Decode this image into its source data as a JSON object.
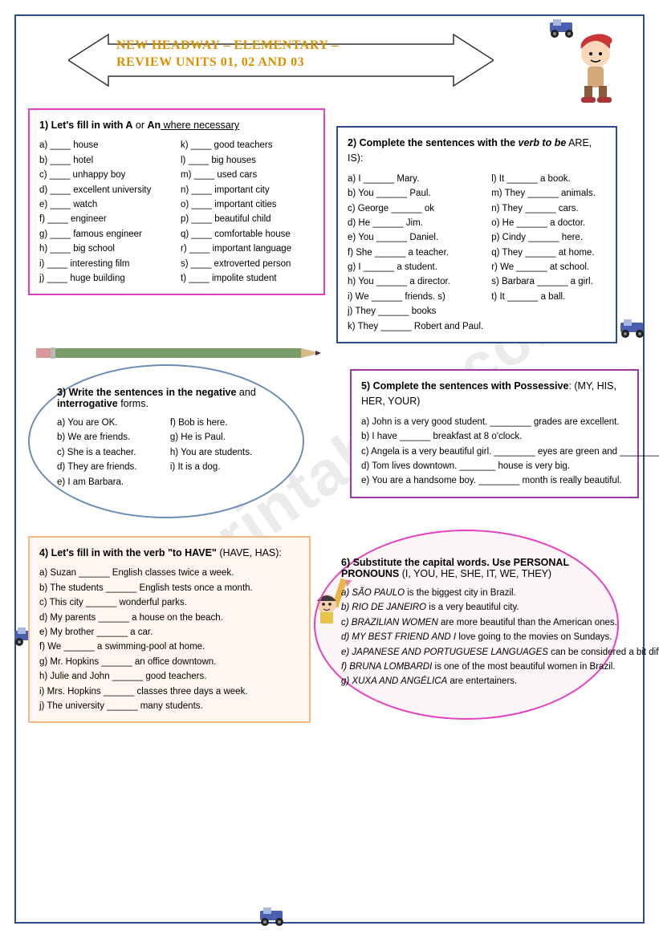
{
  "title": "NEW HEADWAY – ELEMENTARY –\nREVIEW UNITS 01, 02 AND 03",
  "watermark": "ESLprintables.com",
  "q1": {
    "title_pre": "1)  Let's fill in with ",
    "title_bold": "A",
    "title_mid": " or ",
    "title_bold2": "An",
    "title_suf": " where necessary",
    "left": [
      "a) ____ house",
      "b) ____ hotel",
      "c) ____ unhappy boy",
      "d) ____ excellent university",
      "e) ____ watch",
      "f) ____ engineer",
      "g) ____ famous engineer",
      "h) ____ big school",
      "i) ____ interesting film",
      "j) ____ huge building"
    ],
    "right": [
      "k) ____ good teachers",
      "l) ____ big houses",
      "m) ____ used cars",
      "n) ____ important city",
      "o) ____ important cities",
      "p) ____ beautiful child",
      "q) ____ comfortable house",
      "r) ____ important language",
      "s) ____ extroverted person",
      "t) ____ impolite student"
    ]
  },
  "q2": {
    "title_pre": "2) Complete the sentences with the ",
    "title_bold": "verb to be",
    "title_suf": " ARE, IS):",
    "left": [
      "a) I ______ Mary.",
      "b) You ______ Paul.",
      "c) George ______ ok",
      "d) He ______ Jim.",
      "e) You ______ Daniel.",
      "f) She ______ a teacher.",
      "g) I ______ a student.",
      "h) You ______ a director.",
      "i) We ______ friends. s)",
      "j) They ______ books",
      "k) They ______ Robert and Paul."
    ],
    "right": [
      "l) It ______ a book.",
      "m) They ______ animals.",
      "n) They ______ cars.",
      "o) He ______ a doctor.",
      "p) Cindy ______ here.",
      "q) They ______ at home.",
      "r) We ______ at school.",
      "s) Barbara ______ a girl.",
      "t) It ______ a ball."
    ]
  },
  "q3": {
    "title_pre": "3) Write the sentences in the ",
    "title_bold1": "negative",
    "title_mid": " and ",
    "title_bold2": "interrogative",
    "title_suf": " forms.",
    "left": [
      "a) You are OK.",
      "b) We are friends.",
      "c) She is a teacher.",
      "d) They are friends.",
      "e) I am Barbara."
    ],
    "right": [
      "f) Bob is here.",
      "g) He is Paul.",
      "h) You are students.",
      "i) It is a dog."
    ]
  },
  "q5": {
    "title_pre": "5) Complete the sentences with ",
    "title_bold": "Possessive",
    "title_suf": ": (MY, HIS, HER, YOUR)",
    "items": [
      "a) John is a very good student. ________ grades are excellent.",
      "b) I have ______ breakfast at 8 o'clock.",
      "c) Angela is a very beautiful girl. ________ eyes are green and ________ hair is black.",
      "d) Tom lives downtown. _______ house is very big.",
      "e) You are a handsome boy. ________ month is really beautiful."
    ]
  },
  "q4": {
    "title_pre": "4) Let's fill in with the verb ",
    "title_bold": "\"to HAVE\"",
    "title_suf": " (HAVE, HAS):",
    "items": [
      "a) Suzan ______ English classes twice a week.",
      "b) The students ______ English tests once a month.",
      "c) This city ______ wonderful parks.",
      "d) My parents ______ a house on the beach.",
      "e) My brother ______ a car.",
      "f) We ______ a swimming-pool at home.",
      "g) Mr. Hopkins ______ an office downtown.",
      "h) Julie and John ______ good teachers.",
      "i) Mrs. Hopkins ______ classes three days a week.",
      "j) The university ______ many students."
    ]
  },
  "q6": {
    "title_pre": "6) Substitute the capital words. Use ",
    "title_bold": "PERSONAL PRONOUNS",
    "title_suf": " (I, YOU, HE, SHE, IT, WE, THEY)",
    "items": [
      {
        "cap": "a) SÃO PAULO",
        "rest": " is the biggest city in Brazil."
      },
      {
        "cap": "b) RIO DE JANEIRO",
        "rest": " is a very beautiful city."
      },
      {
        "cap": "c) BRAZILIAN WOMEN",
        "rest": " are more beautiful than the American ones."
      },
      {
        "cap": "d) MY BEST FRIEND AND I",
        "rest": " love going to the movies on Sundays."
      },
      {
        "cap": "e) JAPANESE AND PORTUGUESE LANGUAGES",
        "rest": " can be considered a bit difficult."
      },
      {
        "cap": "f) BRUNA LOMBARDI",
        "rest": " is one of the most beautiful women in Brazil."
      },
      {
        "cap": "g) XUXA AND ANGÉLICA",
        "rest": " are entertainers."
      }
    ]
  }
}
